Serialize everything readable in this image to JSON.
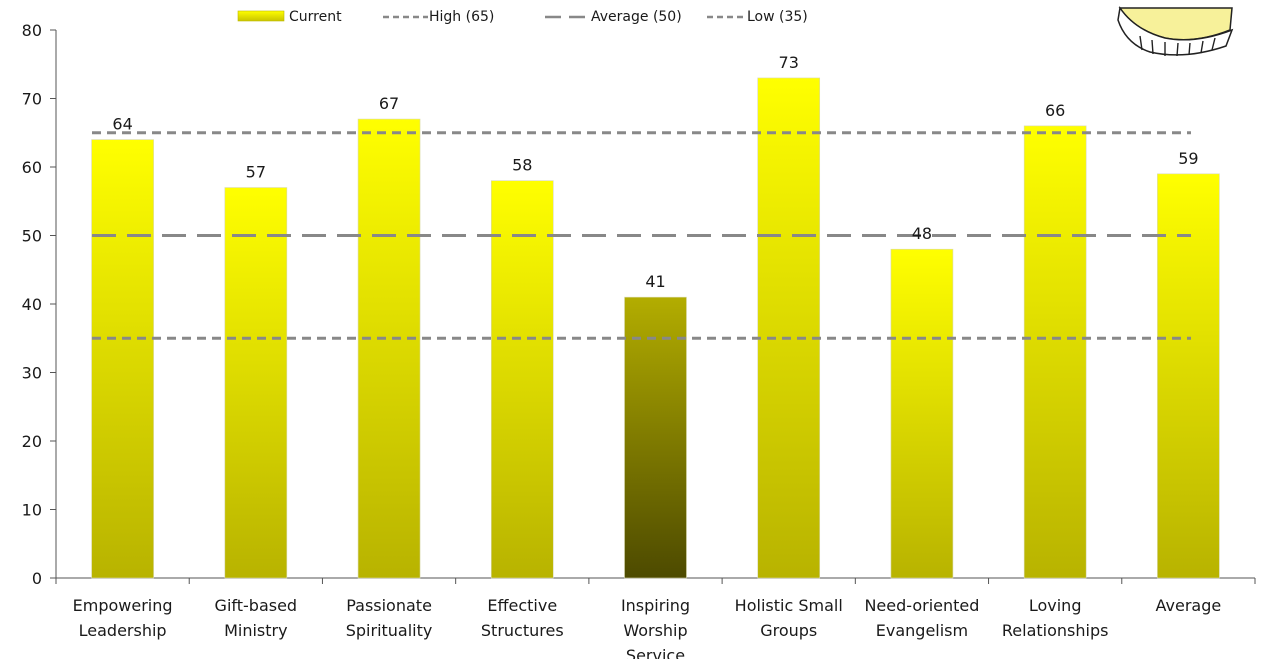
{
  "chart_data": {
    "type": "bar",
    "categories": [
      [
        "Empowering",
        "Leadership"
      ],
      [
        "Gift-based",
        "Ministry"
      ],
      [
        "Passionate",
        "Spirituality"
      ],
      [
        "Effective",
        "Structures"
      ],
      [
        "Inspiring",
        "Worship",
        "Service"
      ],
      [
        "Holistic Small",
        "Groups"
      ],
      [
        "Need-oriented",
        "Evangelism"
      ],
      [
        "Loving",
        "Relationships"
      ],
      [
        "Average"
      ]
    ],
    "series": [
      {
        "name": "Current",
        "values": [
          64,
          57,
          67,
          58,
          41,
          73,
          48,
          66,
          59
        ]
      }
    ],
    "reference_lines": [
      {
        "name": "High (65)",
        "value": 65,
        "style": "short-dash",
        "color": "#888888"
      },
      {
        "name": "Average (50)",
        "value": 50,
        "style": "long-dash",
        "color": "#888888"
      },
      {
        "name": "Low (35)",
        "value": 35,
        "style": "short-dash",
        "color": "#888888"
      }
    ],
    "ylim": [
      0,
      80
    ],
    "yticks": [
      0,
      10,
      20,
      30,
      40,
      50,
      60,
      70,
      80
    ],
    "grid": false,
    "legend_position": "top",
    "colors": {
      "bar_top": "#ffff00",
      "bar_bottom": "#b8b300",
      "low_bar_top": "#b3ad00",
      "low_bar_bottom": "#4d4a00",
      "axis": "#555555"
    },
    "highlight_index": 4
  }
}
